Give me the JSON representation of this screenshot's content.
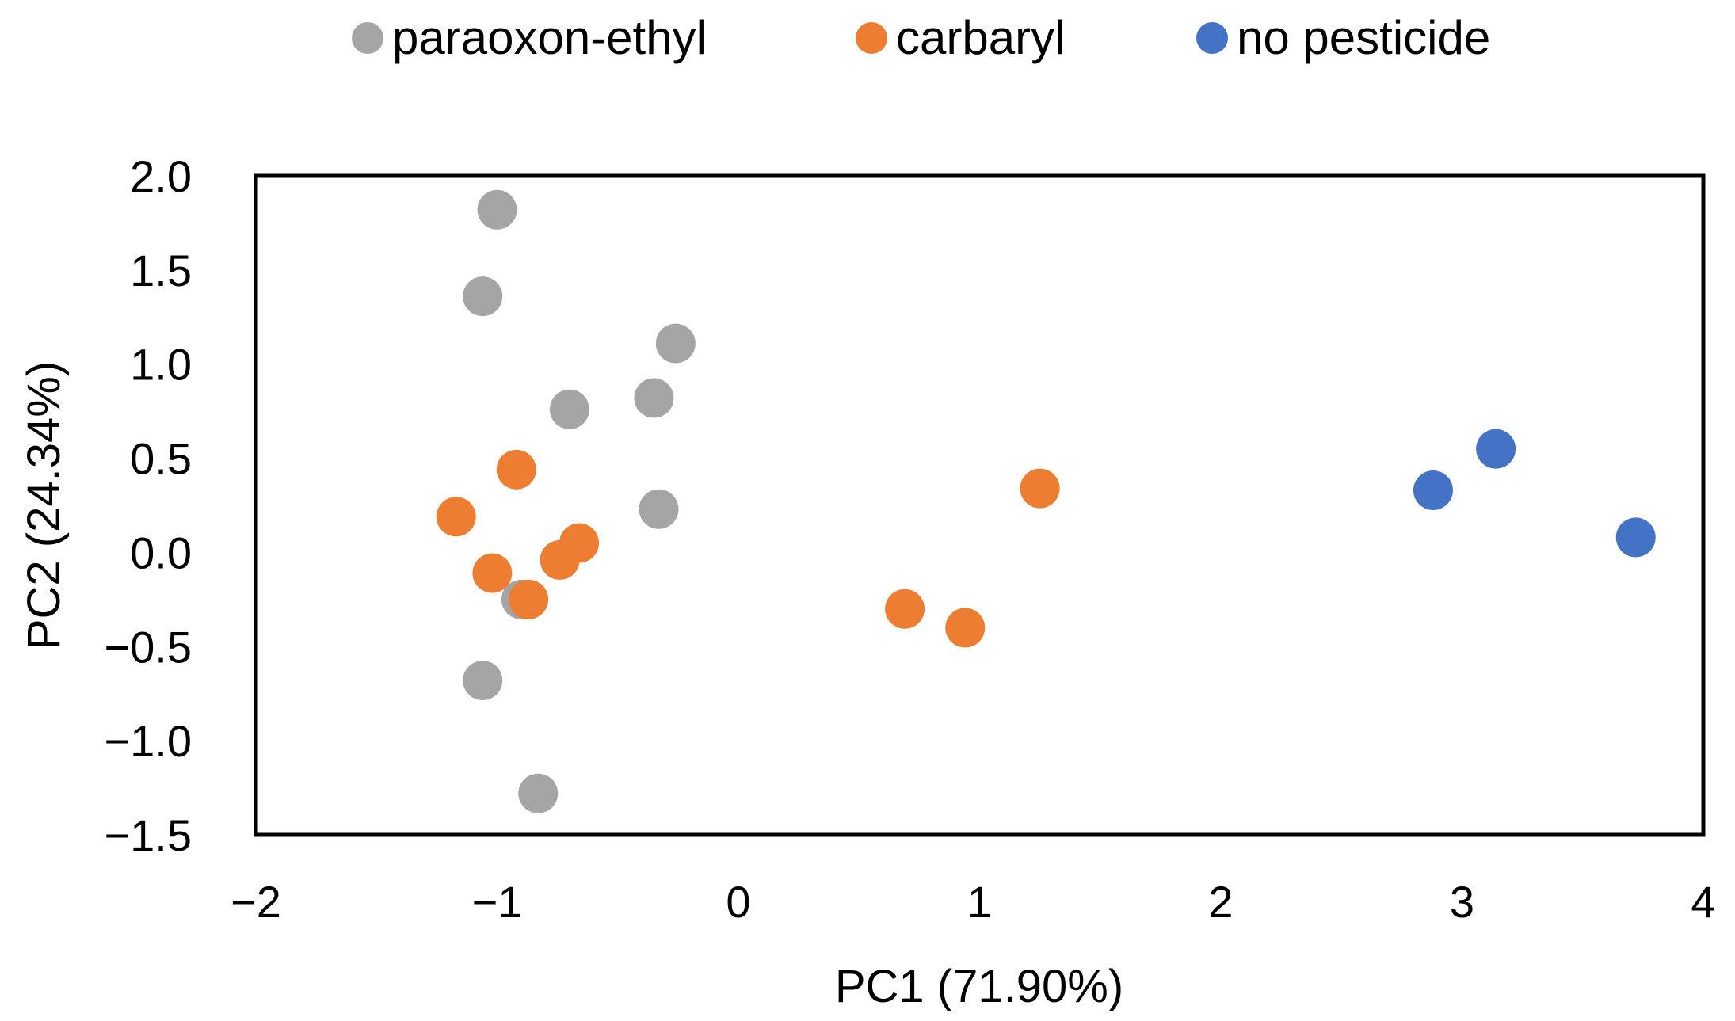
{
  "chart_data": {
    "type": "scatter",
    "title": "",
    "xlabel": "PC1 (71.90%)",
    "ylabel": "PC2 (24.34%)",
    "xlim": [
      -2,
      4
    ],
    "ylim": [
      -1.5,
      2.0
    ],
    "x_ticks": [
      {
        "value": -2,
        "label": "−2"
      },
      {
        "value": -1,
        "label": "−1"
      },
      {
        "value": 0,
        "label": "0"
      },
      {
        "value": 1,
        "label": "1"
      },
      {
        "value": 2,
        "label": "2"
      },
      {
        "value": 3,
        "label": "3"
      },
      {
        "value": 4,
        "label": "4"
      }
    ],
    "y_ticks": [
      {
        "value": 2.0,
        "label": "2.0"
      },
      {
        "value": 1.5,
        "label": "1.5"
      },
      {
        "value": 1.0,
        "label": "1.0"
      },
      {
        "value": 0.5,
        "label": "0.5"
      },
      {
        "value": 0.0,
        "label": "0.0"
      },
      {
        "value": -0.5,
        "label": "−0.5"
      },
      {
        "value": -1.0,
        "label": "−1.0"
      },
      {
        "value": -1.5,
        "label": "−1.5"
      }
    ],
    "grid": false,
    "legend_position": "top",
    "series": [
      {
        "name": "paraoxon-ethyl",
        "color": "#A5A5A5",
        "points": [
          {
            "x": -1.0,
            "y": 1.82
          },
          {
            "x": -1.06,
            "y": 1.36
          },
          {
            "x": -0.26,
            "y": 1.11
          },
          {
            "x": -0.35,
            "y": 0.82
          },
          {
            "x": -0.7,
            "y": 0.76
          },
          {
            "x": -0.33,
            "y": 0.23
          },
          {
            "x": -0.9,
            "y": -0.25
          },
          {
            "x": -1.06,
            "y": -0.68
          },
          {
            "x": -0.83,
            "y": -1.28
          }
        ]
      },
      {
        "name": "carbaryl",
        "color": "#ED7D31",
        "points": [
          {
            "x": -0.92,
            "y": 0.44
          },
          {
            "x": -1.17,
            "y": 0.19
          },
          {
            "x": -1.02,
            "y": -0.11
          },
          {
            "x": -0.74,
            "y": -0.04
          },
          {
            "x": -0.66,
            "y": 0.05
          },
          {
            "x": -0.87,
            "y": -0.25
          },
          {
            "x": 0.69,
            "y": -0.3
          },
          {
            "x": 0.94,
            "y": -0.4
          },
          {
            "x": 1.25,
            "y": 0.34
          }
        ]
      },
      {
        "name": "no pesticide",
        "color": "#4472C4",
        "points": [
          {
            "x": 2.88,
            "y": 0.33
          },
          {
            "x": 3.14,
            "y": 0.55
          },
          {
            "x": 3.72,
            "y": 0.08
          }
        ]
      }
    ]
  }
}
